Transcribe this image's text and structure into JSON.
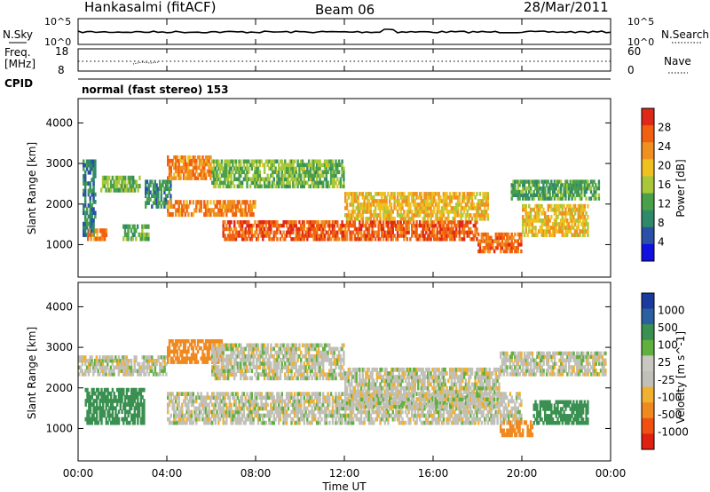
{
  "header": {
    "title": "Hankasalmi (fitACF)",
    "beam": "Beam 06",
    "date": "28/Mar/2011"
  },
  "strip_top": {
    "left_label": "N.Sky",
    "left_ticks": [
      "10^5",
      "10^0"
    ],
    "right_ticks": [
      "10^5",
      "10^0"
    ],
    "right_label": "N.Search"
  },
  "strip_freq": {
    "left_label_1": "Freq.",
    "left_label_2": "[MHz]",
    "left_ticks": [
      "18",
      "8"
    ],
    "right_ticks": [
      "60",
      "0"
    ],
    "right_label": "Nave",
    "cpid_label": "CPID",
    "cpid_text": "normal (fast stereo) 153"
  },
  "x_axis": {
    "ticks": [
      "00:00",
      "04:00",
      "08:00",
      "12:00",
      "16:00",
      "20:00",
      "00:00"
    ],
    "label": "Time UT"
  },
  "colors": {
    "power": [
      "#1010e0",
      "#2a50a8",
      "#2f8a6a",
      "#4aa04a",
      "#a8c83a",
      "#f0c020",
      "#f09020",
      "#f06010",
      "#e02818"
    ],
    "velocity": [
      "#e02010",
      "#f05010",
      "#f08a20",
      "#f0b030",
      "#c0c0b8",
      "#c8c8c0",
      "#60b040",
      "#3a9050",
      "#2a60a0",
      "#1a3aa0"
    ]
  },
  "chart_data": [
    {
      "type": "heatmap",
      "name": "power",
      "ylabel": "Slant Range [km]",
      "yticks": [
        1000,
        2000,
        3000,
        4000
      ],
      "ylim": [
        200,
        4600
      ],
      "xlim_hours": [
        0,
        24
      ],
      "colorbar": {
        "label": "Power [dB]",
        "ticks": [
          "4",
          "8",
          "12",
          "16",
          "20",
          "24",
          "28"
        ],
        "range": [
          0,
          32
        ]
      },
      "bands": [
        {
          "t0": 0.2,
          "t1": 0.8,
          "r0": 1200,
          "r1": 3100,
          "level": 8
        },
        {
          "t0": 0.4,
          "t1": 1.3,
          "r0": 1100,
          "r1": 1400,
          "level": 24
        },
        {
          "t0": 1.0,
          "t1": 2.8,
          "r0": 2300,
          "r1": 2700,
          "level": 14
        },
        {
          "t0": 2.0,
          "t1": 3.2,
          "r0": 1100,
          "r1": 1500,
          "level": 12
        },
        {
          "t0": 3.0,
          "t1": 4.2,
          "r0": 1900,
          "r1": 2600,
          "level": 10
        },
        {
          "t0": 4.0,
          "t1": 6.0,
          "r0": 2600,
          "r1": 3200,
          "level": 24
        },
        {
          "t0": 4.0,
          "t1": 8.0,
          "r0": 1700,
          "r1": 2100,
          "level": 24
        },
        {
          "t0": 6.0,
          "t1": 12.0,
          "r0": 2400,
          "r1": 3100,
          "level": 14
        },
        {
          "t0": 6.5,
          "t1": 18.0,
          "r0": 1100,
          "r1": 1600,
          "level": 27
        },
        {
          "t0": 12.0,
          "t1": 18.5,
          "r0": 1600,
          "r1": 2300,
          "level": 20
        },
        {
          "t0": 18.0,
          "t1": 20.0,
          "r0": 800,
          "r1": 1300,
          "level": 26
        },
        {
          "t0": 19.5,
          "t1": 23.5,
          "r0": 2100,
          "r1": 2600,
          "level": 12
        },
        {
          "t0": 20.0,
          "t1": 23.0,
          "r0": 1200,
          "r1": 2000,
          "level": 20
        }
      ]
    },
    {
      "type": "heatmap",
      "name": "velocity",
      "ylabel": "Slant Range [km]",
      "yticks": [
        1000,
        2000,
        3000,
        4000
      ],
      "ylim": [
        200,
        4600
      ],
      "xlim_hours": [
        0,
        24
      ],
      "colorbar": {
        "label": "Velocity [m s^-1]",
        "ticks": [
          "1000",
          "500",
          "100",
          "25",
          "-25",
          "-100",
          "-500",
          "-1000"
        ]
      },
      "bands": [
        {
          "t0": 0.0,
          "t1": 4.0,
          "r0": 2300,
          "r1": 2800,
          "level": 0
        },
        {
          "t0": 0.3,
          "t1": 3.0,
          "r0": 1100,
          "r1": 2000,
          "level": 150
        },
        {
          "t0": 4.0,
          "t1": 6.5,
          "r0": 2600,
          "r1": 3200,
          "level": -150
        },
        {
          "t0": 4.0,
          "t1": 20.0,
          "r0": 1100,
          "r1": 1900,
          "level": 0
        },
        {
          "t0": 6.0,
          "t1": 12.0,
          "r0": 2200,
          "r1": 3100,
          "level": 0
        },
        {
          "t0": 12.0,
          "t1": 19.0,
          "r0": 1500,
          "r1": 2500,
          "level": 0
        },
        {
          "t0": 19.0,
          "t1": 23.8,
          "r0": 2300,
          "r1": 2900,
          "level": 0
        },
        {
          "t0": 19.0,
          "t1": 20.5,
          "r0": 800,
          "r1": 1200,
          "level": -150
        },
        {
          "t0": 20.5,
          "t1": 23.0,
          "r0": 1100,
          "r1": 1700,
          "level": 150
        }
      ]
    }
  ]
}
